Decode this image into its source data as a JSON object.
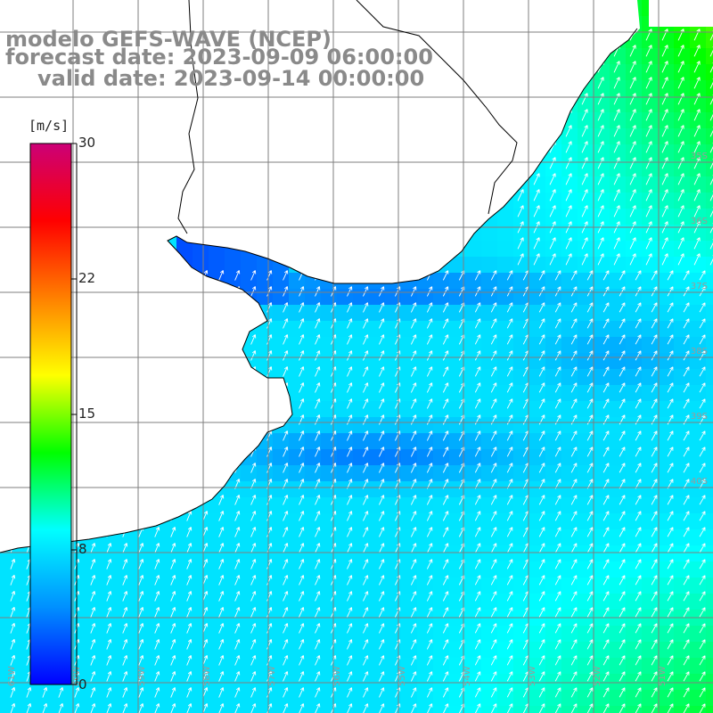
{
  "title": {
    "line1": "modelo GEFS-WAVE (NCEP)",
    "line2": "forecast date: 2023-09-09 06:00:00",
    "line3": "valid date: 2023-09-14 00:00:00"
  },
  "colorbar": {
    "unit": "[m/s]",
    "ticks": [
      "30",
      "22",
      "15",
      "8",
      "0"
    ],
    "min": 0,
    "max": 30,
    "colors": [
      "#0000ff",
      "#0090ff",
      "#00ffff",
      "#00ff00",
      "#ffff00",
      "#ff8000",
      "#ff0000",
      "#cc0077"
    ]
  },
  "map": {
    "land_color": "#ffffff",
    "coast_color": "#000000",
    "grid_color": "#7f7f7f",
    "arrow_color": "#ffffff",
    "latitude_labels": [
      "35S",
      "36S",
      "37S",
      "38S",
      "39S",
      "40S"
    ],
    "longitude_labels": [
      "61W",
      "60W",
      "59W",
      "58W",
      "57W",
      "56W",
      "55W",
      "54W",
      "53W",
      "52W",
      "51W"
    ]
  }
}
